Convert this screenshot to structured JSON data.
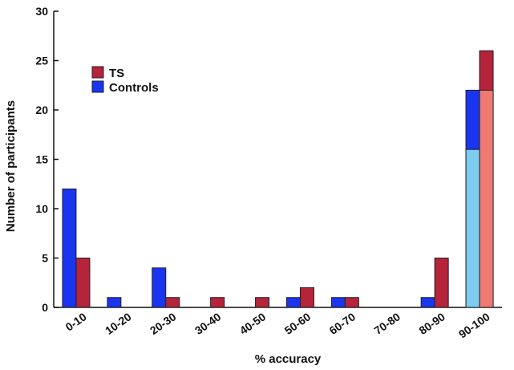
{
  "chart_data": {
    "type": "bar",
    "title": "",
    "xlabel": "% accuracy",
    "ylabel": "Number of participants",
    "ylim": [
      0,
      30
    ],
    "yticks": [
      0,
      5,
      10,
      15,
      20,
      25,
      30
    ],
    "grid": false,
    "legend_position": "top-left",
    "categories": [
      "0-10",
      "10-20",
      "20-30",
      "30-40",
      "40-50",
      "50-60",
      "60-70",
      "70-80",
      "80-90",
      "90-100"
    ],
    "series": [
      {
        "name": "Controls",
        "color": "#1a35f0",
        "values": [
          12,
          1,
          4,
          0,
          0,
          1,
          1,
          0,
          1,
          22
        ]
      },
      {
        "name": "TS",
        "color": "#b5243a",
        "values": [
          5,
          0,
          1,
          1,
          1,
          2,
          1,
          0,
          5,
          26
        ]
      }
    ],
    "inner_segments": [
      {
        "series": "Controls",
        "category": "90-100",
        "value": 16,
        "color": "#7dcdf2"
      },
      {
        "series": "TS",
        "category": "90-100",
        "value": 22,
        "color": "#ef7a72"
      }
    ]
  }
}
